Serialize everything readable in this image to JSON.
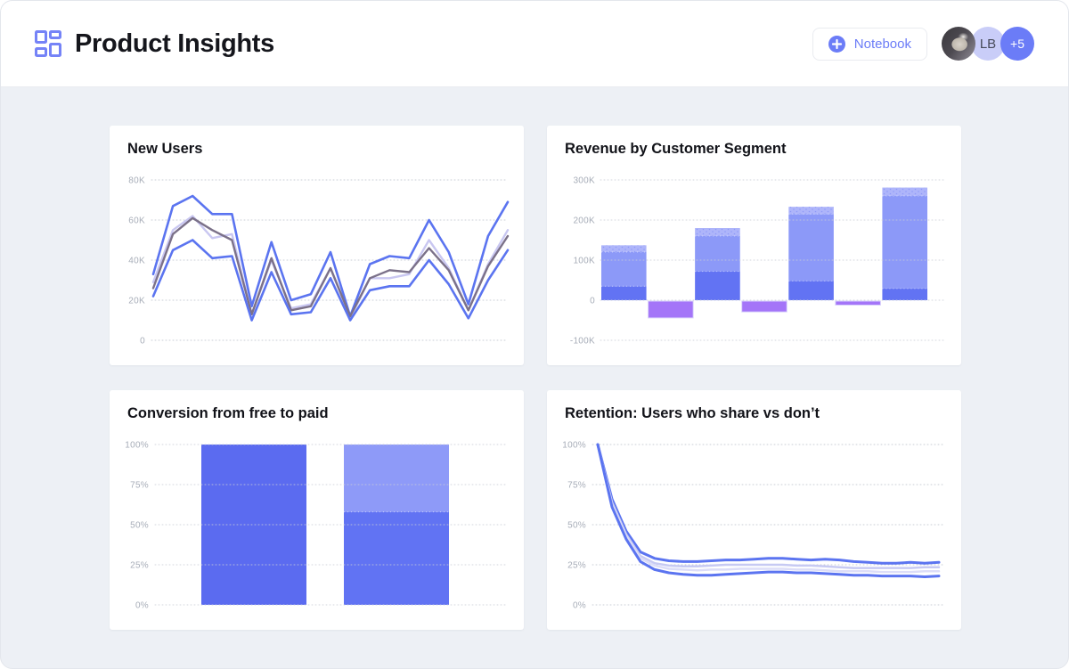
{
  "header": {
    "title": "Product Insights",
    "notebook_label": "Notebook",
    "avatars": {
      "initials": "LB",
      "overflow": "+5"
    }
  },
  "colors": {
    "accent": "#6b7cf7",
    "page_bg": "#edf0f5",
    "panel_bg": "#ffffff",
    "grid_line": "#c9cdd6",
    "tick_label": "#a7adb8"
  },
  "chart_data": [
    {
      "type": "line",
      "title": "New Users",
      "unit": "K",
      "ylim": [
        0,
        80
      ],
      "grid": "dotted",
      "legend": "none",
      "yticks": [
        {
          "label": "80K",
          "value": 80
        },
        {
          "label": "60K",
          "value": 60
        },
        {
          "label": "40K",
          "value": 40
        },
        {
          "label": "20K",
          "value": 20
        },
        {
          "label": "0",
          "value": 0
        }
      ],
      "series": [
        {
          "name": "line-top-blue",
          "color": "#5b74f0",
          "width": 2.6,
          "values": [
            33,
            67,
            72,
            63,
            63,
            17,
            49,
            20,
            23,
            44,
            12,
            38,
            42,
            41,
            60,
            44,
            18,
            52,
            69
          ]
        },
        {
          "name": "line-mid-lavender",
          "color": "#c9c7f1",
          "width": 2.4,
          "values": [
            29,
            55,
            62,
            51,
            53,
            13,
            40,
            16,
            18,
            36,
            11,
            31,
            31,
            33,
            50,
            36,
            15,
            38,
            55
          ]
        },
        {
          "name": "line-mid-dark",
          "color": "#7b7189",
          "width": 2.4,
          "values": [
            26,
            53,
            61,
            55,
            50,
            13,
            41,
            15,
            17,
            36,
            12,
            31,
            35,
            34,
            46,
            35,
            15,
            37,
            52
          ]
        },
        {
          "name": "line-bottom-blue",
          "color": "#5b74f0",
          "width": 2.6,
          "values": [
            22,
            45,
            50,
            41,
            42,
            10,
            34,
            13,
            14,
            31,
            10,
            25,
            27,
            27,
            40,
            28,
            11,
            30,
            45
          ]
        }
      ]
    },
    {
      "type": "stacked_bar",
      "title": "Revenue by Customer Segment",
      "unit": "K",
      "ylim": [
        -100,
        300
      ],
      "grid": "dotted",
      "legend": "none",
      "yticks": [
        {
          "label": "300K",
          "value": 300
        },
        {
          "label": "200K",
          "value": 200
        },
        {
          "label": "100K",
          "value": 100
        },
        {
          "label": "0",
          "value": 0
        },
        {
          "label": "-100K",
          "value": -100
        }
      ],
      "colors": {
        "low": "#6273f3",
        "mid": "#8c99f8",
        "top": "#aeb5fa",
        "top_dots": "#8793f6",
        "negative": "#a475f8"
      },
      "bars": [
        {
          "stack": [
            35,
            120,
            137
          ]
        },
        {
          "negative": -42
        },
        {
          "stack": [
            72,
            160,
            180
          ]
        },
        {
          "negative": -27
        },
        {
          "stack": [
            48,
            215,
            233
          ]
        },
        {
          "negative": -10
        },
        {
          "stack": [
            29,
            260,
            281
          ]
        }
      ]
    },
    {
      "type": "stacked_bar",
      "title": "Conversion from free to paid",
      "unit": "%",
      "ylim": [
        0,
        100
      ],
      "grid": "dotted",
      "legend": "none",
      "yticks": [
        {
          "label": "100%",
          "value": 100
        },
        {
          "label": "75%",
          "value": 75
        },
        {
          "label": "50%",
          "value": 50
        },
        {
          "label": "25%",
          "value": 25
        },
        {
          "label": "0%",
          "value": 0
        }
      ],
      "bars": [
        {
          "stack": [
            100
          ],
          "colors": [
            "#5b6bf0"
          ]
        },
        {
          "stack": [
            58,
            100
          ],
          "colors": [
            "#6173f3",
            "#8e9af8"
          ]
        }
      ]
    },
    {
      "type": "line",
      "title": "Retention: Users who share vs don’t",
      "unit": "%",
      "ylim": [
        0,
        100
      ],
      "grid": "dotted",
      "legend": "none",
      "yticks": [
        {
          "label": "100%",
          "value": 100
        },
        {
          "label": "75%",
          "value": 75
        },
        {
          "label": "50%",
          "value": 50
        },
        {
          "label": "25%",
          "value": 25
        },
        {
          "label": "0%",
          "value": 0
        }
      ],
      "series": [
        {
          "name": "retention-top-blue",
          "color": "#5b74f0",
          "width": 3,
          "values": [
            100,
            66,
            46,
            33,
            29,
            27.5,
            27,
            27,
            27.5,
            28,
            28,
            28.5,
            29,
            29,
            28.5,
            28,
            28.5,
            28,
            27,
            26.5,
            26,
            26,
            26.5,
            26,
            26.5
          ]
        },
        {
          "name": "retention-light-1",
          "color": "#c7caf3",
          "width": 2.5,
          "values": [
            100,
            64,
            44,
            30.5,
            26,
            24.5,
            24,
            24,
            24.5,
            25,
            25,
            25,
            25,
            25,
            24.5,
            24.5,
            24,
            23.5,
            23,
            23,
            23,
            23,
            23,
            23.5,
            23.5
          ]
        },
        {
          "name": "retention-light-2",
          "color": "#dcddf8",
          "width": 2.5,
          "values": [
            100,
            62.5,
            43,
            29,
            24.5,
            22.5,
            22,
            21.5,
            22,
            22,
            22.5,
            22.5,
            22.5,
            22.5,
            22,
            22,
            21.5,
            21,
            21,
            21,
            20.5,
            20.5,
            20.5,
            21,
            21
          ]
        },
        {
          "name": "retention-bottom-blue",
          "color": "#5b74f0",
          "width": 3,
          "values": [
            100,
            61,
            41,
            27,
            22,
            20,
            19,
            18.5,
            18.5,
            19,
            19.5,
            20,
            20.5,
            20.5,
            20,
            20,
            19.5,
            19,
            18.5,
            18.5,
            18,
            18,
            18,
            17.5,
            18
          ]
        }
      ]
    }
  ]
}
